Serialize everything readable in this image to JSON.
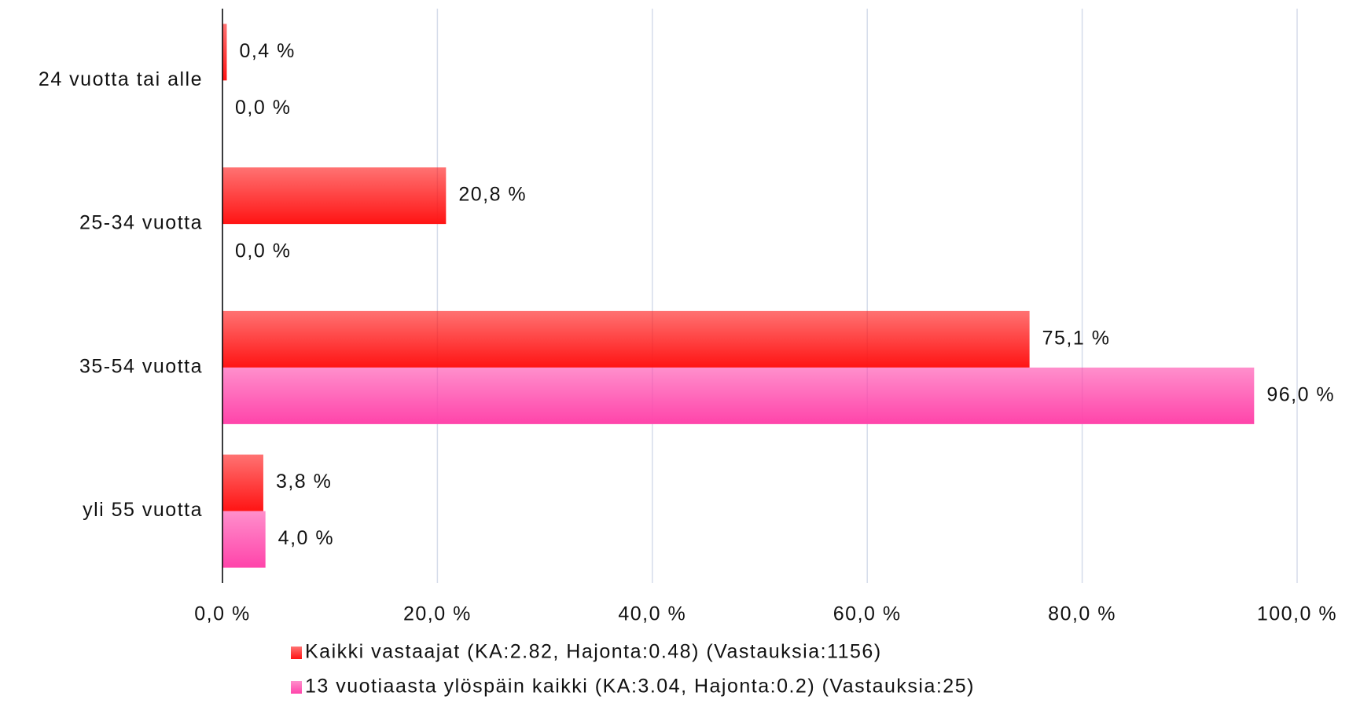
{
  "chart_data": {
    "type": "hbar",
    "categories": [
      "24 vuotta tai alle",
      "25-34 vuotta",
      "35-54 vuotta",
      "yli 55 vuotta"
    ],
    "series": [
      {
        "name": "Kaikki vastaajat (KA:2.82, Hajonta:0.48) (Vastauksia:1156)",
        "color": "#ff1414",
        "values": [
          0.4,
          20.8,
          75.1,
          3.8
        ],
        "value_labels": [
          "0,4 %",
          "20,8 %",
          "75,1 %",
          "3,8 %"
        ]
      },
      {
        "name": "13 vuotiaasta ylöspäin kaikki (KA:3.04, Hajonta:0.2) (Vastauksia:25)",
        "color": "#ff44aa",
        "values": [
          0.0,
          0.0,
          96.0,
          4.0
        ],
        "value_labels": [
          "0,0 %",
          "0,0 %",
          "96,0 %",
          "4,0 %"
        ]
      }
    ],
    "xlim": [
      0,
      100
    ],
    "xticks": [
      {
        "value": 0,
        "label": "0,0 %"
      },
      {
        "value": 20,
        "label": "20,0 %"
      },
      {
        "value": 40,
        "label": "40,0 %"
      },
      {
        "value": 60,
        "label": "60,0 %"
      },
      {
        "value": 80,
        "label": "80,0 %"
      },
      {
        "value": 100,
        "label": "100,0 %"
      }
    ],
    "grid": true
  }
}
